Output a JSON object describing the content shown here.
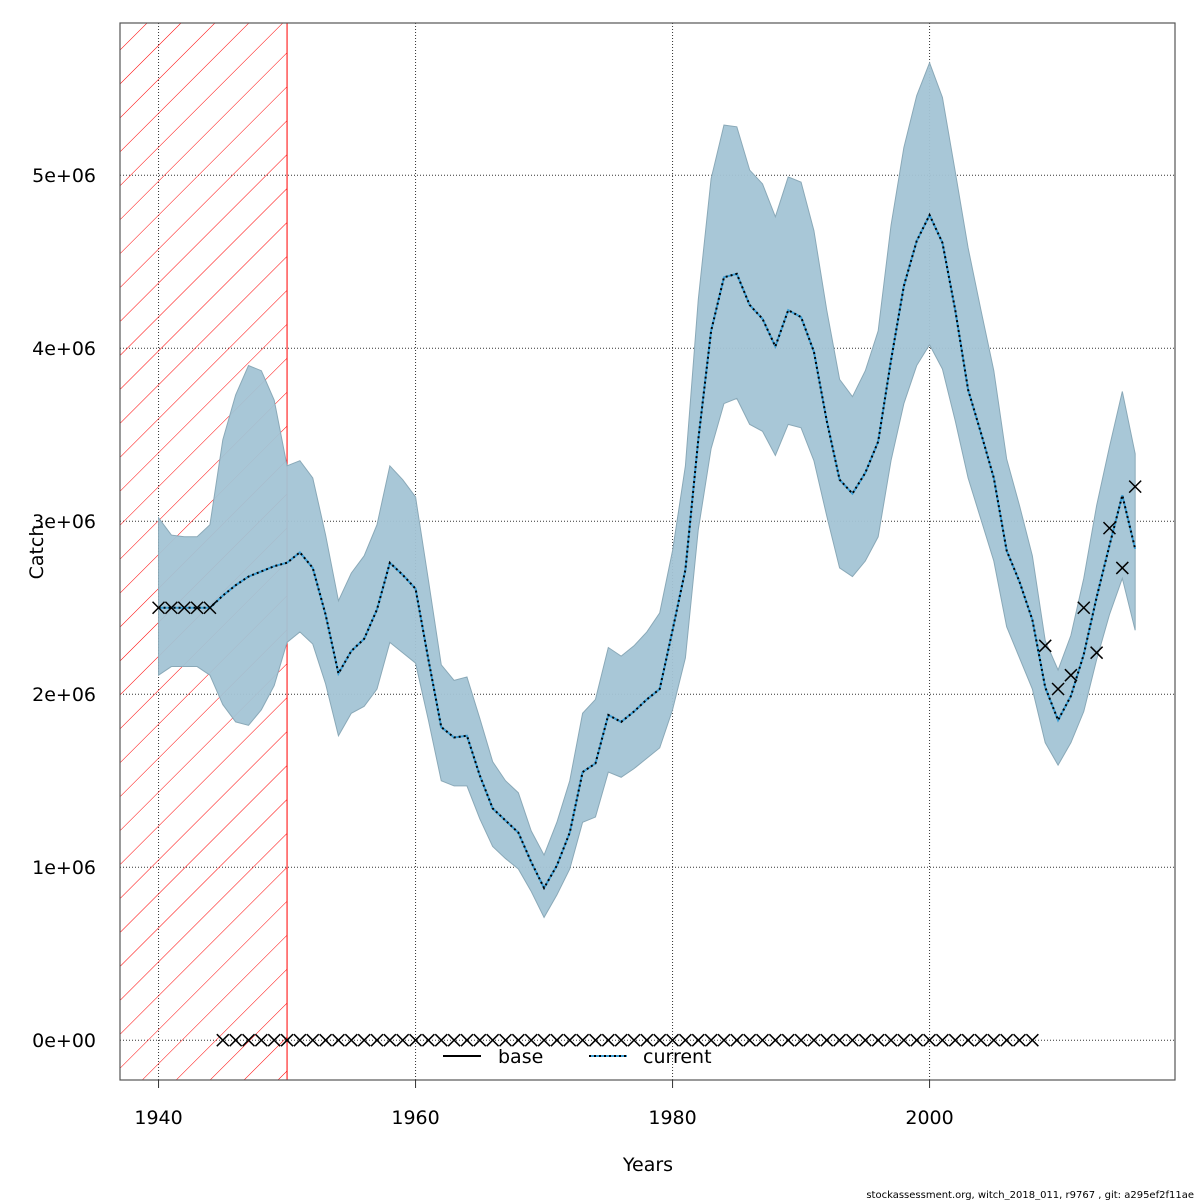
{
  "chart_data": {
    "type": "line",
    "title": "",
    "xlabel": "Years",
    "ylabel": "Catch",
    "xlim": [
      1937,
      2019.1
    ],
    "ylim": [
      -230000,
      5880000
    ],
    "y_value_multiplier": 1000000,
    "grid": true,
    "x_ticks": [
      1940,
      1960,
      1980,
      2000
    ],
    "x_tick_labels": [
      "1940",
      "1960",
      "1980",
      "2000"
    ],
    "y_ticks": [
      0,
      1000000,
      2000000,
      3000000,
      4000000,
      5000000
    ],
    "y_tick_labels": [
      "0e+00",
      "1e+06",
      "2e+06",
      "3e+06",
      "4e+06",
      "5e+06"
    ],
    "shaded_region": {
      "x_start": 1937,
      "x_end": 1950,
      "pattern": "hatched",
      "color": "#ff0000"
    },
    "band_color": "#a3c4d5",
    "years_start": 1940,
    "series": [
      {
        "name": "current",
        "style": "dotted",
        "color": "#3b9fd6",
        "values": [
          2.5,
          2.5,
          2.5,
          2.5,
          2.5,
          2.57,
          2.63,
          2.68,
          2.71,
          2.74,
          2.76,
          2.82,
          2.73,
          2.46,
          2.12,
          2.25,
          2.32,
          2.49,
          2.76,
          2.69,
          2.61,
          2.2,
          1.81,
          1.75,
          1.76,
          1.53,
          1.34,
          1.27,
          1.2,
          1.03,
          0.88,
          1.01,
          1.2,
          1.55,
          1.6,
          1.88,
          1.84,
          1.9,
          1.97,
          2.03,
          2.37,
          2.72,
          3.47,
          4.1,
          4.41,
          4.43,
          4.25,
          4.17,
          4.01,
          4.22,
          4.18,
          3.98,
          3.58,
          3.24,
          3.16,
          3.28,
          3.46,
          3.93,
          4.36,
          4.62,
          4.77,
          4.61,
          4.22,
          3.76,
          3.51,
          3.25,
          2.83,
          2.65,
          2.43,
          2.04,
          1.85,
          1.99,
          2.23,
          2.56,
          2.86,
          3.15,
          2.84
        ],
        "upper": [
          3.02,
          2.92,
          2.91,
          2.91,
          2.98,
          3.47,
          3.73,
          3.9,
          3.87,
          3.7,
          3.32,
          3.35,
          3.25,
          2.92,
          2.54,
          2.7,
          2.8,
          2.98,
          3.32,
          3.24,
          3.14,
          2.66,
          2.17,
          2.08,
          2.1,
          1.86,
          1.61,
          1.5,
          1.43,
          1.21,
          1.07,
          1.26,
          1.5,
          1.89,
          1.97,
          2.27,
          2.22,
          2.28,
          2.36,
          2.47,
          2.83,
          3.32,
          4.28,
          4.98,
          5.29,
          5.28,
          5.03,
          4.95,
          4.76,
          4.99,
          4.96,
          4.68,
          4.22,
          3.82,
          3.72,
          3.87,
          4.1,
          4.71,
          5.16,
          5.46,
          5.65,
          5.45,
          5.02,
          4.58,
          4.22,
          3.87,
          3.36,
          3.09,
          2.8,
          2.31,
          2.14,
          2.34,
          2.67,
          3.09,
          3.43,
          3.75,
          3.39
        ],
        "lower": [
          2.11,
          2.16,
          2.16,
          2.16,
          2.11,
          1.94,
          1.84,
          1.82,
          1.91,
          2.05,
          2.3,
          2.36,
          2.29,
          2.06,
          1.76,
          1.89,
          1.93,
          2.03,
          2.3,
          2.24,
          2.18,
          1.85,
          1.5,
          1.47,
          1.47,
          1.28,
          1.12,
          1.05,
          0.99,
          0.86,
          0.71,
          0.84,
          0.99,
          1.26,
          1.29,
          1.55,
          1.52,
          1.57,
          1.63,
          1.69,
          1.91,
          2.21,
          2.95,
          3.42,
          3.68,
          3.71,
          3.56,
          3.52,
          3.38,
          3.56,
          3.54,
          3.35,
          3.03,
          2.73,
          2.68,
          2.77,
          2.91,
          3.35,
          3.68,
          3.9,
          4.02,
          3.88,
          3.58,
          3.25,
          3.01,
          2.77,
          2.39,
          2.21,
          2.03,
          1.72,
          1.59,
          1.72,
          1.9,
          2.2,
          2.46,
          2.67,
          2.37
        ]
      }
    ],
    "observations": {
      "marker": "x",
      "years": [
        1940,
        1941,
        1942,
        1943,
        1944,
        1945,
        1946,
        1947,
        1948,
        1949,
        1950,
        1951,
        1952,
        1953,
        1954,
        1955,
        1956,
        1957,
        1958,
        1959,
        1960,
        1961,
        1962,
        1963,
        1964,
        1965,
        1966,
        1967,
        1968,
        1969,
        1970,
        1971,
        1972,
        1973,
        1974,
        1975,
        1976,
        1977,
        1978,
        1979,
        1980,
        1981,
        1982,
        1983,
        1984,
        1985,
        1986,
        1987,
        1988,
        1989,
        1990,
        1991,
        1992,
        1993,
        1994,
        1995,
        1996,
        1997,
        1998,
        1999,
        2000,
        2001,
        2002,
        2003,
        2004,
        2005,
        2006,
        2007,
        2008,
        2009,
        2010,
        2011,
        2012,
        2013,
        2014,
        2015,
        2016
      ],
      "values": [
        2.5,
        2.5,
        2.5,
        2.5,
        2.5,
        0,
        0,
        0,
        0,
        0,
        0,
        0,
        0,
        0,
        0,
        0,
        0,
        0,
        0,
        0,
        0,
        0,
        0,
        0,
        0,
        0,
        0,
        0,
        0,
        0,
        0,
        0,
        0,
        0,
        0,
        0,
        0,
        0,
        0,
        0,
        0,
        0,
        0,
        0,
        0,
        0,
        0,
        0,
        0,
        0,
        0,
        0,
        0,
        0,
        0,
        0,
        0,
        0,
        0,
        0,
        0,
        0,
        0,
        0,
        0,
        0,
        0,
        0,
        0,
        2.28,
        2.03,
        2.11,
        2.5,
        2.24,
        2.96,
        2.73,
        3.2
      ]
    },
    "legend": {
      "placement": "bottom-center",
      "entries": [
        {
          "label": "base",
          "style": "solid",
          "color": "#000000"
        },
        {
          "label": "current",
          "style": "dotted",
          "color": "#3b9fd6"
        }
      ]
    }
  },
  "footer": "stockassessment.org, witch_2018_011, r9767 , git: a295ef2f11ae"
}
